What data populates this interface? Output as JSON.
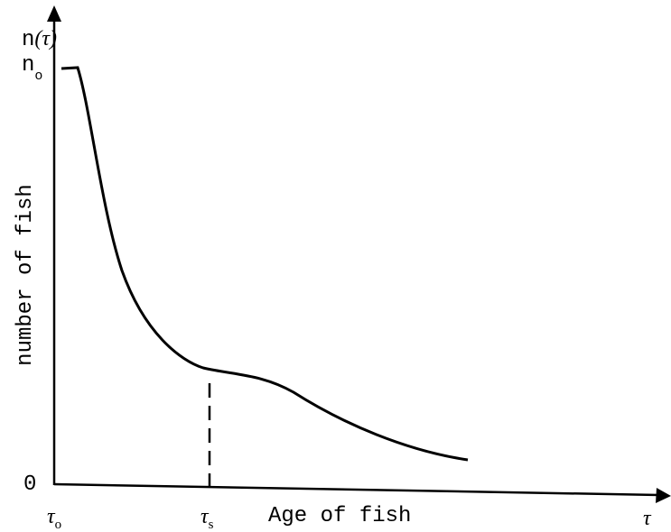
{
  "y_axis": {
    "top_label": {
      "symbol": "n",
      "argument": "(τ)"
    },
    "max_label": {
      "symbol": "n",
      "subscript": "o"
    },
    "zero_label": "0",
    "title": "number of fish"
  },
  "x_axis": {
    "start_label": {
      "symbol": "τ",
      "subscript": "o"
    },
    "mark_label": {
      "symbol": "τ",
      "subscript": "s"
    },
    "title": "Age of fish",
    "end_label": "τ"
  }
}
